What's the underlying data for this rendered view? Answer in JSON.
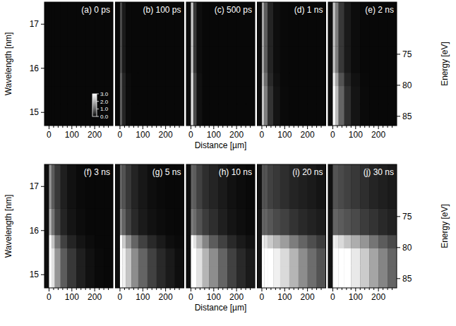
{
  "chart_data": [
    {
      "type": "heatmap",
      "title": "(a) 0 ps",
      "ylabel": "Wavelength [nm]",
      "xlim": [
        -20,
        280
      ],
      "ylim": [
        14.7,
        17.5
      ],
      "xticks": [
        0,
        100,
        200
      ],
      "xminorticks": [
        20,
        40,
        60,
        80,
        120,
        140,
        160,
        180,
        220,
        240,
        260
      ],
      "yticks": [
        15,
        16,
        17
      ],
      "x_edges": [
        -20,
        0,
        10,
        25,
        50,
        80,
        120,
        160,
        200,
        240,
        280
      ],
      "y_edges": [
        14.7,
        15.2,
        15.6,
        15.9,
        16.5,
        17.5
      ],
      "colorbar_range": [
        0,
        3
      ],
      "colorbar_ticks": [
        {
          "value": 0,
          "label": "0.0"
        },
        {
          "value": 1,
          "label": "1.0"
        },
        {
          "value": 2,
          "label": "2.0"
        },
        {
          "value": 3,
          "label": "3.0"
        }
      ],
      "cells": [
        [
          0.05,
          0.05,
          0.05,
          0.05,
          0.05,
          0.05,
          0.05,
          0.05,
          0.05,
          0.05
        ],
        [
          0.05,
          0.05,
          0.05,
          0.05,
          0.05,
          0.05,
          0.05,
          0.05,
          0.05,
          0.05
        ],
        [
          0.05,
          0.05,
          0.05,
          0.05,
          0.05,
          0.05,
          0.05,
          0.05,
          0.05,
          0.05
        ],
        [
          0.05,
          0.05,
          0.05,
          0.05,
          0.05,
          0.05,
          0.05,
          0.05,
          0.05,
          0.05
        ],
        [
          0.05,
          0.05,
          0.05,
          0.05,
          0.05,
          0.05,
          0.05,
          0.05,
          0.05,
          0.05
        ]
      ]
    },
    {
      "type": "heatmap",
      "title": "(b) 100 ps",
      "xlim": [
        -20,
        280
      ],
      "ylim": [
        14.7,
        17.5
      ],
      "xticks": [
        0,
        100,
        200
      ],
      "xminorticks": [
        20,
        40,
        60,
        80,
        120,
        140,
        160,
        180,
        220,
        240,
        260
      ],
      "x_edges": [
        -20,
        0,
        10,
        25,
        50,
        80,
        120,
        160,
        200,
        240,
        280
      ],
      "y_edges": [
        14.7,
        15.2,
        15.6,
        15.9,
        16.5,
        17.5
      ],
      "cells": [
        [
          0.05,
          0.9,
          0.3,
          0.08,
          0.05,
          0.05,
          0.05,
          0.05,
          0.05,
          0.05
        ],
        [
          0.05,
          0.9,
          0.3,
          0.08,
          0.05,
          0.05,
          0.05,
          0.05,
          0.05,
          0.05
        ],
        [
          0.05,
          0.9,
          0.3,
          0.08,
          0.05,
          0.05,
          0.05,
          0.05,
          0.05,
          0.05
        ],
        [
          0.05,
          0.7,
          0.2,
          0.06,
          0.05,
          0.05,
          0.05,
          0.05,
          0.05,
          0.05
        ],
        [
          0.05,
          0.7,
          0.2,
          0.06,
          0.05,
          0.05,
          0.05,
          0.05,
          0.05,
          0.05
        ]
      ]
    },
    {
      "type": "heatmap",
      "title": "(c) 500 ps",
      "xlabel": "Distance [µm]",
      "xlim": [
        -20,
        280
      ],
      "ylim": [
        14.7,
        17.5
      ],
      "xticks": [
        0,
        100,
        200
      ],
      "xminorticks": [
        20,
        40,
        60,
        80,
        120,
        140,
        160,
        180,
        220,
        240,
        260
      ],
      "x_edges": [
        -20,
        0,
        10,
        25,
        50,
        80,
        120,
        160,
        200,
        240,
        280
      ],
      "y_edges": [
        14.7,
        15.2,
        15.6,
        15.9,
        16.5,
        17.5
      ],
      "cells": [
        [
          0.08,
          2.6,
          0.7,
          0.12,
          0.05,
          0.05,
          0.05,
          0.05,
          0.05,
          0.05
        ],
        [
          0.08,
          2.6,
          0.7,
          0.12,
          0.05,
          0.05,
          0.05,
          0.05,
          0.05,
          0.05
        ],
        [
          0.08,
          2.6,
          0.7,
          0.12,
          0.05,
          0.05,
          0.05,
          0.05,
          0.05,
          0.05
        ],
        [
          0.08,
          2.3,
          0.5,
          0.1,
          0.05,
          0.05,
          0.05,
          0.05,
          0.05,
          0.05
        ],
        [
          0.08,
          2.3,
          0.5,
          0.1,
          0.05,
          0.05,
          0.05,
          0.05,
          0.05,
          0.05
        ]
      ]
    },
    {
      "type": "heatmap",
      "title": "(d) 1 ns",
      "xlim": [
        -20,
        280
      ],
      "ylim": [
        14.7,
        17.5
      ],
      "xticks": [
        0,
        100,
        200
      ],
      "xminorticks": [
        20,
        40,
        60,
        80,
        120,
        140,
        160,
        180,
        220,
        240,
        260
      ],
      "x_edges": [
        -20,
        0,
        10,
        25,
        50,
        80,
        120,
        160,
        200,
        240,
        280
      ],
      "y_edges": [
        14.7,
        15.2,
        15.6,
        15.9,
        16.5,
        17.5
      ],
      "cells": [
        [
          0.08,
          2.2,
          1.3,
          0.45,
          0.15,
          0.07,
          0.05,
          0.05,
          0.05,
          0.05
        ],
        [
          0.08,
          2.2,
          1.3,
          0.45,
          0.15,
          0.07,
          0.05,
          0.05,
          0.05,
          0.05
        ],
        [
          0.08,
          2.0,
          1.1,
          0.35,
          0.12,
          0.06,
          0.05,
          0.05,
          0.05,
          0.05
        ],
        [
          0.08,
          1.8,
          0.9,
          0.3,
          0.1,
          0.06,
          0.05,
          0.05,
          0.05,
          0.05
        ],
        [
          0.08,
          1.8,
          0.9,
          0.3,
          0.1,
          0.06,
          0.05,
          0.05,
          0.05,
          0.05
        ]
      ]
    },
    {
      "type": "heatmap",
      "title": "(e) 2 ns",
      "y2label": "Energy [eV]",
      "xlim": [
        -20,
        280
      ],
      "ylim": [
        14.7,
        17.5
      ],
      "y2lim": [
        66.6,
        86.5
      ],
      "xticks": [
        0,
        100,
        200
      ],
      "xminorticks": [
        20,
        40,
        60,
        80,
        120,
        140,
        160,
        180,
        220,
        240,
        260
      ],
      "y2ticks": [
        75,
        80,
        85
      ],
      "x_edges": [
        -20,
        0,
        10,
        25,
        50,
        80,
        120,
        160,
        200,
        240,
        280
      ],
      "y_edges": [
        14.7,
        15.2,
        15.6,
        15.9,
        16.5,
        17.5
      ],
      "cells": [
        [
          0.1,
          3.0,
          2.1,
          1.0,
          0.4,
          0.15,
          0.07,
          0.05,
          0.05,
          0.05
        ],
        [
          0.1,
          3.0,
          2.1,
          1.0,
          0.4,
          0.15,
          0.07,
          0.05,
          0.05,
          0.05
        ],
        [
          0.1,
          2.8,
          1.8,
          0.8,
          0.3,
          0.12,
          0.06,
          0.05,
          0.05,
          0.05
        ],
        [
          0.1,
          2.2,
          1.3,
          0.5,
          0.2,
          0.08,
          0.05,
          0.05,
          0.05,
          0.05
        ],
        [
          0.1,
          2.2,
          1.3,
          0.5,
          0.2,
          0.08,
          0.05,
          0.05,
          0.05,
          0.05
        ]
      ]
    },
    {
      "type": "heatmap",
      "title": "(f) 3 ns",
      "ylabel": "Wavelength [nm]",
      "xlim": [
        -20,
        280
      ],
      "ylim": [
        14.7,
        17.5
      ],
      "xticks": [
        0,
        100,
        200
      ],
      "xminorticks": [
        20,
        40,
        60,
        80,
        120,
        140,
        160,
        180,
        220,
        240,
        260
      ],
      "yticks": [
        15,
        16,
        17
      ],
      "x_edges": [
        -20,
        0,
        10,
        25,
        50,
        80,
        120,
        160,
        200,
        240,
        280
      ],
      "y_edges": [
        14.7,
        15.2,
        15.6,
        15.9,
        16.5,
        17.5
      ],
      "cells": [
        [
          0.1,
          3.0,
          2.6,
          1.6,
          0.9,
          0.5,
          0.25,
          0.12,
          0.07,
          0.05
        ],
        [
          0.1,
          3.0,
          2.6,
          1.6,
          0.9,
          0.5,
          0.25,
          0.12,
          0.07,
          0.05
        ],
        [
          0.1,
          3.0,
          2.2,
          1.2,
          0.6,
          0.3,
          0.15,
          0.08,
          0.05,
          0.05
        ],
        [
          0.1,
          2.0,
          1.2,
          0.6,
          0.3,
          0.15,
          0.08,
          0.05,
          0.05,
          0.05
        ],
        [
          0.1,
          1.6,
          0.9,
          0.5,
          0.25,
          0.12,
          0.07,
          0.05,
          0.05,
          0.05
        ]
      ]
    },
    {
      "type": "heatmap",
      "title": "(g) 5 ns",
      "xlim": [
        -20,
        280
      ],
      "ylim": [
        14.7,
        17.5
      ],
      "xticks": [
        0,
        100,
        200
      ],
      "xminorticks": [
        20,
        40,
        60,
        80,
        120,
        140,
        160,
        180,
        220,
        240,
        260
      ],
      "x_edges": [
        -20,
        0,
        10,
        25,
        50,
        80,
        120,
        160,
        200,
        240,
        280
      ],
      "y_edges": [
        14.7,
        15.2,
        15.6,
        15.9,
        16.5,
        17.5
      ],
      "cells": [
        [
          0.1,
          3.0,
          2.8,
          2.2,
          1.5,
          1.0,
          0.6,
          0.35,
          0.2,
          0.1
        ],
        [
          0.1,
          3.0,
          2.8,
          2.2,
          1.5,
          1.0,
          0.6,
          0.35,
          0.2,
          0.1
        ],
        [
          0.1,
          3.0,
          2.3,
          1.6,
          1.0,
          0.6,
          0.35,
          0.2,
          0.1,
          0.07
        ],
        [
          0.1,
          1.4,
          1.0,
          0.6,
          0.35,
          0.2,
          0.12,
          0.08,
          0.06,
          0.05
        ],
        [
          0.1,
          1.0,
          0.8,
          0.5,
          0.3,
          0.18,
          0.1,
          0.07,
          0.05,
          0.05
        ]
      ]
    },
    {
      "type": "heatmap",
      "title": "(h) 10 ns",
      "xlabel": "Distance [µm]",
      "xlim": [
        -20,
        280
      ],
      "ylim": [
        14.7,
        17.5
      ],
      "xticks": [
        0,
        100,
        200
      ],
      "xminorticks": [
        20,
        40,
        60,
        80,
        120,
        140,
        160,
        180,
        220,
        240,
        260
      ],
      "x_edges": [
        -20,
        0,
        10,
        25,
        50,
        80,
        120,
        160,
        200,
        240,
        280
      ],
      "y_edges": [
        14.7,
        15.2,
        15.6,
        15.9,
        16.5,
        17.5
      ],
      "cells": [
        [
          0.1,
          3.0,
          3.0,
          2.6,
          2.0,
          1.5,
          1.0,
          0.6,
          0.35,
          0.2
        ],
        [
          0.1,
          3.0,
          3.0,
          2.6,
          2.0,
          1.5,
          1.0,
          0.6,
          0.35,
          0.2
        ],
        [
          0.1,
          3.0,
          2.6,
          2.0,
          1.4,
          0.9,
          0.6,
          0.35,
          0.2,
          0.12
        ],
        [
          0.1,
          1.3,
          1.1,
          0.8,
          0.55,
          0.4,
          0.25,
          0.15,
          0.1,
          0.07
        ],
        [
          0.1,
          1.0,
          0.9,
          0.6,
          0.4,
          0.3,
          0.2,
          0.12,
          0.08,
          0.06
        ]
      ]
    },
    {
      "type": "heatmap",
      "title": "(i) 20 ns",
      "xlim": [
        -20,
        280
      ],
      "ylim": [
        14.7,
        17.5
      ],
      "xticks": [
        0,
        100,
        200
      ],
      "xminorticks": [
        20,
        40,
        60,
        80,
        120,
        140,
        160,
        180,
        220,
        240,
        260
      ],
      "x_edges": [
        -20,
        0,
        10,
        25,
        50,
        80,
        120,
        160,
        200,
        240,
        280
      ],
      "y_edges": [
        14.7,
        15.2,
        15.6,
        15.9,
        16.5,
        17.5
      ],
      "cells": [
        [
          0.15,
          3.0,
          3.0,
          3.0,
          2.8,
          2.5,
          2.0,
          1.5,
          1.1,
          0.8
        ],
        [
          0.15,
          3.0,
          3.0,
          3.0,
          2.8,
          2.5,
          2.0,
          1.5,
          1.1,
          0.8
        ],
        [
          0.15,
          2.8,
          2.6,
          2.3,
          2.0,
          1.7,
          1.3,
          1.0,
          0.75,
          0.55
        ],
        [
          0.15,
          1.0,
          1.0,
          0.85,
          0.7,
          0.6,
          0.45,
          0.35,
          0.28,
          0.22
        ],
        [
          0.12,
          0.8,
          0.8,
          0.6,
          0.5,
          0.4,
          0.3,
          0.25,
          0.2,
          0.15
        ]
      ]
    },
    {
      "type": "heatmap",
      "title": "(j) 30 ns",
      "y2label": "Energy [eV]",
      "xlim": [
        -20,
        280
      ],
      "ylim": [
        14.7,
        17.5
      ],
      "y2lim": [
        66.6,
        86.5
      ],
      "xticks": [
        0,
        100,
        200
      ],
      "xminorticks": [
        20,
        40,
        60,
        80,
        120,
        140,
        160,
        180,
        220,
        240,
        260
      ],
      "y2ticks": [
        75,
        80,
        85
      ],
      "x_edges": [
        -20,
        0,
        10,
        25,
        50,
        80,
        120,
        160,
        200,
        240,
        280
      ],
      "y_edges": [
        14.7,
        15.2,
        15.6,
        15.9,
        16.5,
        17.5
      ],
      "cells": [
        [
          0.15,
          3.0,
          3.0,
          3.0,
          3.0,
          2.7,
          2.3,
          1.8,
          1.4,
          1.0
        ],
        [
          0.15,
          3.0,
          3.0,
          3.0,
          3.0,
          2.7,
          2.3,
          1.8,
          1.4,
          1.0
        ],
        [
          0.15,
          2.8,
          2.7,
          2.5,
          2.2,
          1.9,
          1.6,
          1.2,
          0.9,
          0.7
        ],
        [
          0.15,
          1.0,
          1.0,
          0.9,
          0.8,
          0.7,
          0.55,
          0.45,
          0.35,
          0.28
        ],
        [
          0.12,
          0.8,
          0.8,
          0.7,
          0.6,
          0.5,
          0.4,
          0.3,
          0.25,
          0.2
        ]
      ]
    }
  ]
}
